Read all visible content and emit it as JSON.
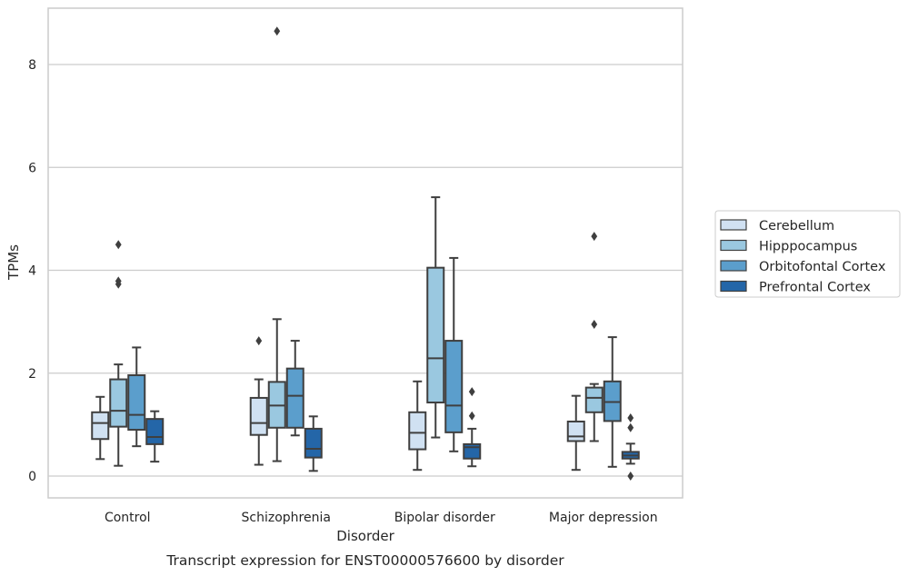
{
  "chart_data": {
    "type": "box",
    "caption": "Transcript expression for ENST00000576600 by disorder",
    "xlabel": "Disorder",
    "ylabel": "TPMs",
    "ylim": [
      -0.4,
      9.2
    ],
    "yticks": [
      0,
      2,
      4,
      6,
      8
    ],
    "grid": "horizontal",
    "legend_placement": "right",
    "categories": [
      "Control",
      "Schizophrenia",
      "Bipolar disorder",
      "Major depression"
    ],
    "series": [
      {
        "name": "Cerebellum",
        "color": "#d0e1f2",
        "boxes": [
          {
            "whislo": 0.33,
            "q1": 0.72,
            "med": 1.03,
            "q3": 1.24,
            "whishi": 1.54,
            "fliers": []
          },
          {
            "whislo": 0.22,
            "q1": 0.8,
            "med": 1.03,
            "q3": 1.52,
            "whishi": 1.88,
            "fliers": [
              2.63
            ]
          },
          {
            "whislo": 0.12,
            "q1": 0.52,
            "med": 0.84,
            "q3": 1.24,
            "whishi": 1.84,
            "fliers": []
          },
          {
            "whislo": 0.12,
            "q1": 0.68,
            "med": 0.77,
            "q3": 1.06,
            "whishi": 1.56,
            "fliers": []
          }
        ]
      },
      {
        "name": "Hipppocampus",
        "color": "#9ac8e0",
        "boxes": [
          {
            "whislo": 0.2,
            "q1": 0.96,
            "med": 1.27,
            "q3": 1.88,
            "whishi": 2.17,
            "fliers": [
              3.73,
              3.79,
              4.5
            ]
          },
          {
            "whislo": 0.29,
            "q1": 0.94,
            "med": 1.37,
            "q3": 1.83,
            "whishi": 3.05,
            "fliers": [
              8.65
            ]
          },
          {
            "whislo": 0.75,
            "q1": 1.43,
            "med": 2.29,
            "q3": 4.05,
            "whishi": 5.42,
            "fliers": []
          },
          {
            "whislo": 0.68,
            "q1": 1.24,
            "med": 1.52,
            "q3": 1.72,
            "whishi": 1.79,
            "fliers": [
              2.95,
              4.66
            ]
          }
        ]
      },
      {
        "name": "Orbitofontal Cortex",
        "color": "#5b9ecc",
        "boxes": [
          {
            "whislo": 0.58,
            "q1": 0.9,
            "med": 1.19,
            "q3": 1.96,
            "whishi": 2.5,
            "fliers": []
          },
          {
            "whislo": 0.79,
            "q1": 0.94,
            "med": 1.56,
            "q3": 2.09,
            "whishi": 2.63,
            "fliers": []
          },
          {
            "whislo": 0.48,
            "q1": 0.85,
            "med": 1.37,
            "q3": 2.63,
            "whishi": 4.24,
            "fliers": []
          },
          {
            "whislo": 0.18,
            "q1": 1.07,
            "med": 1.44,
            "q3": 1.84,
            "whishi": 2.7,
            "fliers": []
          }
        ]
      },
      {
        "name": "Prefrontal Cortex",
        "color": "#2466a8",
        "boxes": [
          {
            "whislo": 0.28,
            "q1": 0.62,
            "med": 0.76,
            "q3": 1.11,
            "whishi": 1.26,
            "fliers": []
          },
          {
            "whislo": 0.1,
            "q1": 0.36,
            "med": 0.53,
            "q3": 0.92,
            "whishi": 1.16,
            "fliers": []
          },
          {
            "whislo": 0.19,
            "q1": 0.34,
            "med": 0.56,
            "q3": 0.62,
            "whishi": 0.92,
            "fliers": [
              1.17,
              1.64
            ]
          },
          {
            "whislo": 0.24,
            "q1": 0.34,
            "med": 0.4,
            "q3": 0.47,
            "whishi": 0.63,
            "fliers": [
              0.0,
              0.94,
              1.13
            ]
          }
        ]
      }
    ]
  }
}
